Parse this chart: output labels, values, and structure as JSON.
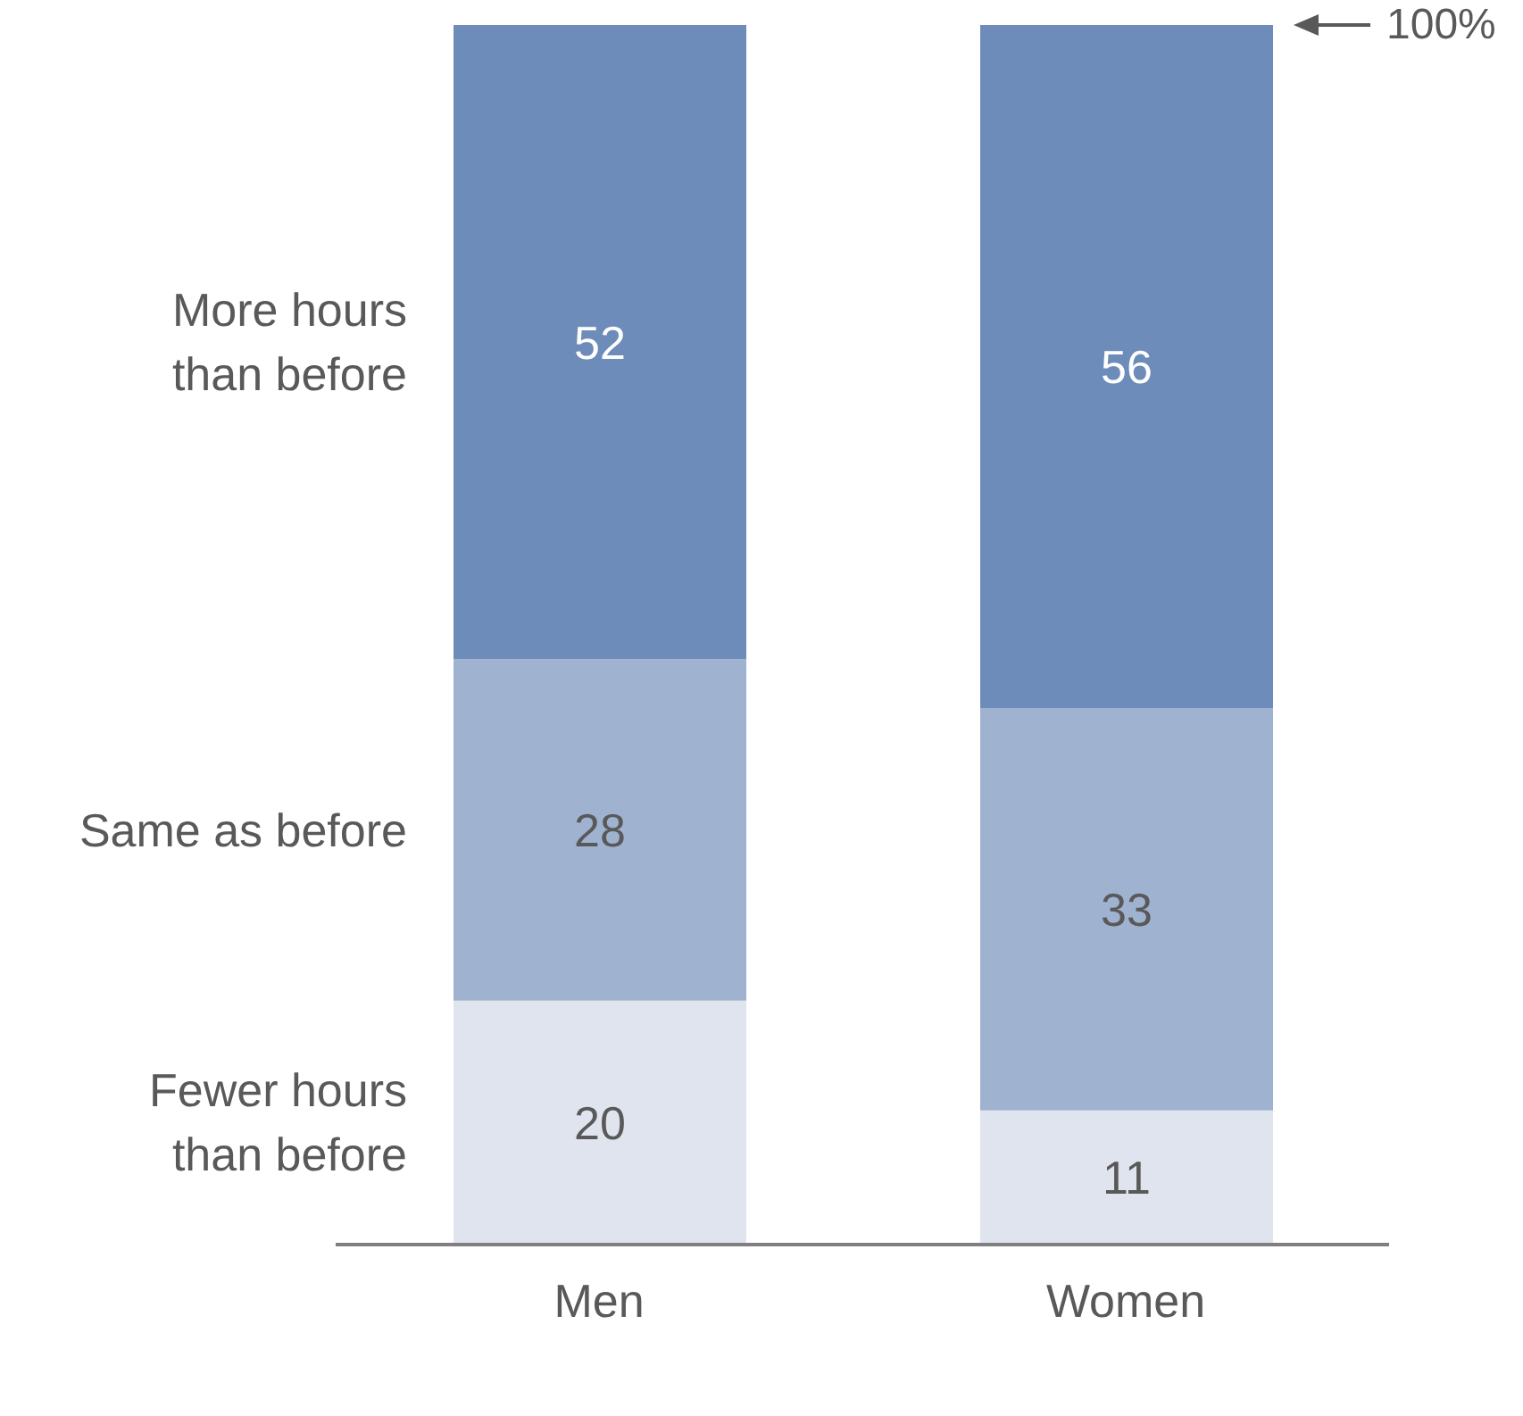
{
  "chart_data": {
    "type": "bar",
    "stacked": true,
    "data_labels": true,
    "legend": false,
    "grid": false,
    "categories": [
      "Men",
      "Women"
    ],
    "ylim": [
      0,
      100
    ],
    "series": [
      {
        "name": "Fewer hours than before",
        "color": "#dfe4ef",
        "values": [
          20,
          11
        ]
      },
      {
        "name": "Same as before",
        "color": "#9fb2d0",
        "values": [
          28,
          33
        ]
      },
      {
        "name": "More hours than before",
        "color": "#6d8cb9",
        "values": [
          52,
          56
        ]
      }
    ],
    "annotations": [
      "100%"
    ]
  }
}
